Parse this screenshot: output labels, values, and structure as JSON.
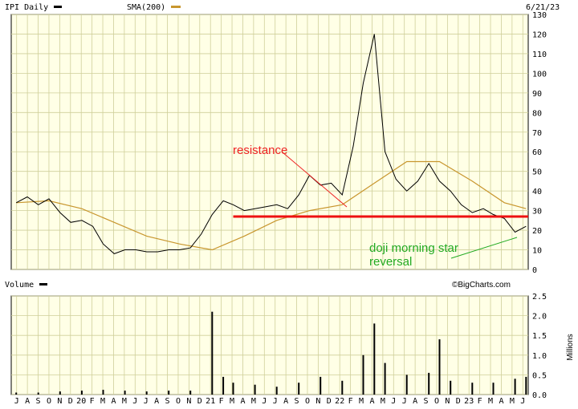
{
  "header": {
    "symbol_label": "IPI Daily",
    "sma_label": "SMA(200)",
    "date": "6/21/23"
  },
  "volume_header": {
    "label": "Volume",
    "watermark": "©BigCharts.com",
    "units_label": "Millions"
  },
  "colors": {
    "background": "#ffffe6",
    "grid": "#cfcf9a",
    "price": "#000000",
    "sma": "#c8962e",
    "resistance": "#ee1111",
    "resistance_annotation": "#ee2222",
    "reversal_annotation": "#22aa22"
  },
  "annotations": {
    "resistance": "resistance",
    "reversal_line1": "doji morning star",
    "reversal_line2": "reversal"
  },
  "chart_data": [
    {
      "type": "line",
      "title": "IPI Daily",
      "ylim": [
        0,
        130
      ],
      "y_ticks": [
        0,
        10,
        20,
        30,
        40,
        50,
        60,
        70,
        80,
        90,
        100,
        110,
        120,
        130
      ],
      "x_ticks": [
        "J",
        "A",
        "S",
        "O",
        "N",
        "D",
        "20",
        "F",
        "M",
        "A",
        "M",
        "J",
        "J",
        "A",
        "S",
        "O",
        "N",
        "D",
        "21",
        "F",
        "M",
        "A",
        "M",
        "J",
        "J",
        "A",
        "S",
        "O",
        "N",
        "D",
        "22",
        "F",
        "M",
        "A",
        "M",
        "J",
        "J",
        "A",
        "S",
        "O",
        "N",
        "D",
        "23",
        "F",
        "M",
        "A",
        "M",
        "J"
      ],
      "grid": true,
      "series": [
        {
          "name": "IPI Daily",
          "x": [
            "2019-07",
            "2019-08",
            "2019-09",
            "2019-10",
            "2019-11",
            "2019-12",
            "2020-01",
            "2020-02",
            "2020-03",
            "2020-04",
            "2020-05",
            "2020-06",
            "2020-07",
            "2020-08",
            "2020-09",
            "2020-10",
            "2020-11",
            "2020-12",
            "2021-01",
            "2021-02",
            "2021-03",
            "2021-04",
            "2021-05",
            "2021-06",
            "2021-07",
            "2021-08",
            "2021-09",
            "2021-10",
            "2021-11",
            "2021-12",
            "2022-01",
            "2022-02",
            "2022-03",
            "2022-04",
            "2022-05",
            "2022-06",
            "2022-07",
            "2022-08",
            "2022-09",
            "2022-10",
            "2022-11",
            "2022-12",
            "2023-01",
            "2023-02",
            "2023-03",
            "2023-04",
            "2023-05",
            "2023-06"
          ],
          "values": [
            34,
            37,
            33,
            36,
            29,
            24,
            25,
            22,
            13,
            8,
            10,
            10,
            9,
            9,
            10,
            10,
            11,
            18,
            28,
            35,
            33,
            30,
            31,
            32,
            33,
            31,
            38,
            48,
            43,
            44,
            38,
            63,
            95,
            120,
            60,
            46,
            40,
            45,
            54,
            45,
            40,
            33,
            29,
            31,
            28,
            26,
            19,
            22
          ]
        },
        {
          "name": "SMA(200)",
          "x": [
            "2019-07",
            "2019-10",
            "2020-01",
            "2020-04",
            "2020-07",
            "2020-10",
            "2021-01",
            "2021-04",
            "2021-07",
            "2021-10",
            "2022-01",
            "2022-04",
            "2022-07",
            "2022-10",
            "2023-01",
            "2023-04",
            "2023-06"
          ],
          "values": [
            34,
            35,
            31,
            24,
            17,
            13,
            10,
            17,
            25,
            30,
            33,
            44,
            55,
            55,
            45,
            34,
            31
          ]
        },
        {
          "name": "resistance",
          "x": [
            "2021-03",
            "2023-06"
          ],
          "values": [
            27,
            27
          ]
        }
      ]
    },
    {
      "type": "bar",
      "title": "Volume",
      "ylabel": "Millions",
      "ylim": [
        0,
        2.5
      ],
      "y_ticks": [
        0.0,
        0.5,
        1.0,
        1.5,
        2.0,
        2.5
      ],
      "x": [
        "2019-07",
        "2019-09",
        "2019-11",
        "2020-01",
        "2020-03",
        "2020-05",
        "2020-07",
        "2020-09",
        "2020-11",
        "2021-01",
        "2021-02",
        "2021-03",
        "2021-05",
        "2021-07",
        "2021-09",
        "2021-11",
        "2022-01",
        "2022-03",
        "2022-04",
        "2022-05",
        "2022-07",
        "2022-09",
        "2022-10",
        "2022-11",
        "2023-01",
        "2023-03",
        "2023-05",
        "2023-06"
      ],
      "values": [
        0.05,
        0.05,
        0.08,
        0.1,
        0.12,
        0.1,
        0.08,
        0.1,
        0.1,
        2.1,
        0.45,
        0.3,
        0.25,
        0.2,
        0.3,
        0.45,
        0.35,
        1.0,
        1.8,
        0.8,
        0.5,
        0.55,
        1.4,
        0.35,
        0.3,
        0.3,
        0.4,
        0.45
      ]
    }
  ]
}
